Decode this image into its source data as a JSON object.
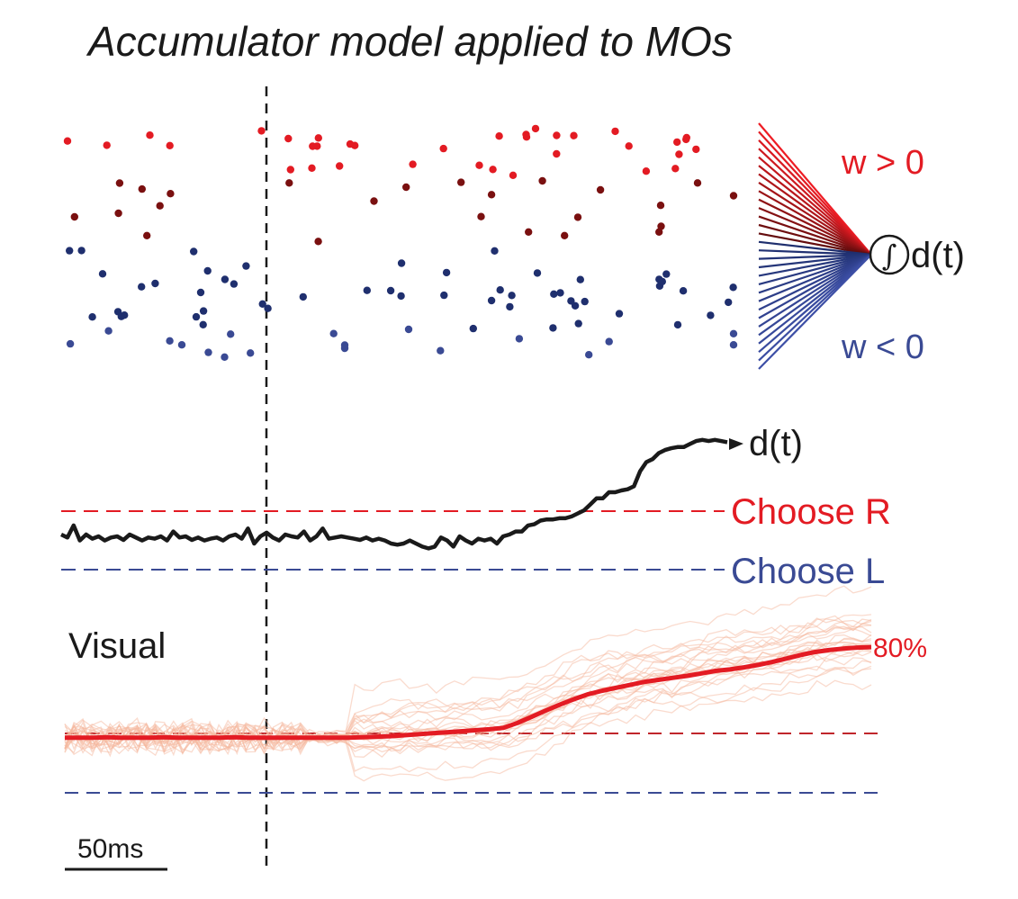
{
  "title": "Accumulator model applied to MOs",
  "colors": {
    "red": "#e31b23",
    "blue": "#3a4a94",
    "dark_red": "#7a1010",
    "navy": "#1f2f6e",
    "black": "#1a1a1a",
    "faint_red": "#f6b89e"
  },
  "raster": {
    "weights_positive_label": "w > 0",
    "weights_negative_label": "w < 0",
    "integrator_symbol": "∫",
    "output_label": "d(t)"
  },
  "decision_panel": {
    "trace_label": "d(t)",
    "upper_threshold_label": "Choose R",
    "lower_threshold_label": "Choose L",
    "trace": [
      0.15,
      0.1,
      0.3,
      0.05,
      0.15,
      0.08,
      0.12,
      0.05,
      0.1,
      0.12,
      0.06,
      0.15,
      0.1,
      0.05,
      0.1,
      0.08,
      0.12,
      0.05,
      0.2,
      0.1,
      0.12,
      0.06,
      0.1,
      0.05,
      0.08,
      0.1,
      0.05,
      0.12,
      0.15,
      0.08,
      0.25,
      0.0,
      0.12,
      0.18,
      0.1,
      0.05,
      0.15,
      0.12,
      0.1,
      0.2,
      0.05,
      0.12,
      0.25,
      0.08,
      0.1,
      0.12,
      0.1,
      0.08,
      0.06,
      0.1,
      0.05,
      0.08,
      0.05,
      0.0,
      -0.02,
      0.0,
      0.05,
      0.0,
      -0.05,
      -0.08,
      -0.05,
      0.1,
      0.05,
      -0.05,
      0.12,
      0.05,
      0.0,
      0.08,
      0.05,
      0.08,
      0.0,
      0.12,
      0.15,
      0.2,
      0.2,
      0.3,
      0.32,
      0.38,
      0.4,
      0.4,
      0.42,
      0.42,
      0.45,
      0.5,
      0.55,
      0.65,
      0.75,
      0.75,
      0.85,
      0.85,
      0.88,
      0.9,
      0.95,
      1.2,
      1.35,
      1.4,
      1.5,
      1.55,
      1.58,
      1.6,
      1.6,
      1.65,
      1.7,
      1.72,
      1.7,
      1.72,
      1.7,
      1.68
    ]
  },
  "visual_panel": {
    "label": "Visual",
    "percent_label": "80%",
    "mean_trace": [
      0.55,
      0.55,
      0.55,
      0.56,
      0.55,
      0.55,
      0.55,
      0.56,
      0.55,
      0.55,
      0.55,
      0.55,
      0.56,
      0.55,
      0.55,
      0.55,
      0.55,
      0.55,
      0.55,
      0.55,
      0.55,
      0.56,
      0.57,
      0.58,
      0.6,
      0.62,
      0.64,
      0.66,
      0.68,
      0.7,
      0.72,
      0.75,
      0.85,
      0.97,
      1.1,
      1.22,
      1.33,
      1.43,
      1.5,
      1.56,
      1.62,
      1.68,
      1.72,
      1.76,
      1.8,
      1.85,
      1.9,
      1.93,
      1.97,
      2.02,
      2.08,
      2.15,
      2.22,
      2.28,
      2.32,
      2.35,
      2.37,
      2.38
    ],
    "scale_bar_label": "50ms"
  }
}
